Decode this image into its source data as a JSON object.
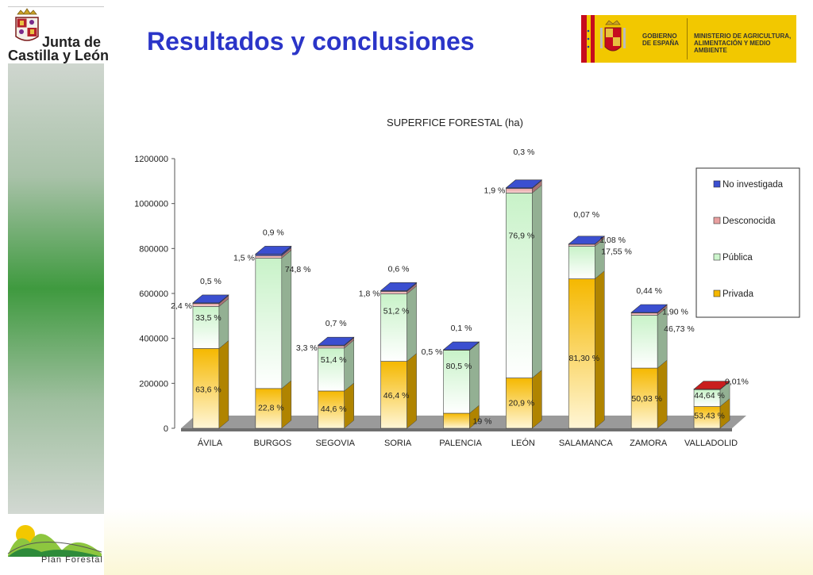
{
  "header": {
    "title": "Resultados y conclusiones",
    "org_name_line1": "Junta de",
    "org_name_line2": "Castilla y León",
    "gov_label": "GOBIERNO DE ESPAÑA",
    "ministry_label": "MINISTERIO DE AGRICULTURA, ALIMENTACIÓN Y MEDIO AMBIENTE"
  },
  "footer": {
    "plan_label": "Plan Forestal"
  },
  "colors": {
    "title": "#2b35c8",
    "privada": "#f5b800",
    "publica": "#ccf5cc",
    "desconocida": "#e9a0a0",
    "no_investigada": "#3b4fd0",
    "valladolid_top": "#c81e1e"
  },
  "chart_data": {
    "type": "bar",
    "stacked": true,
    "three_d": true,
    "title": "SUPERFICE FORESTAL (ha)",
    "xlabel": "",
    "ylabel": "",
    "ylim": [
      0,
      1200000
    ],
    "yticks": [
      "0",
      "200000",
      "400000",
      "600000",
      "800000",
      "1000000",
      "1200000"
    ],
    "categories": [
      "ÁVILA",
      "BURGOS",
      "SEGOVIA",
      "SORIA",
      "PALENCIA",
      "LEÓN",
      "SALAMANCA",
      "ZAMORA",
      "VALLADOLID"
    ],
    "legend_position": "right",
    "series": [
      {
        "name": "Privada",
        "values": [
          355000,
          177000,
          166000,
          298000,
          67000,
          224000,
          665000,
          268000,
          97000
        ],
        "labels": [
          "63,6 %",
          "22,8 %",
          "44,6 %",
          "46,4 %",
          "19 %",
          "20,9 %",
          "81,30 %",
          "50,93 %",
          "53,43 %"
        ]
      },
      {
        "name": "Pública",
        "values": [
          187000,
          580000,
          191000,
          300000,
          280000,
          823000,
          145000,
          235000,
          75000
        ],
        "labels": [
          "33,5 %",
          "74,8 %",
          "51,4 %",
          "51,2 %",
          "80,5 %",
          "76,9 %",
          "17,55 %",
          "46,73 %",
          "44,64 %"
        ]
      },
      {
        "name": "Desconocida",
        "values": [
          13000,
          11000,
          10000,
          11000,
          2000,
          20000,
          9000,
          10000,
          2000
        ],
        "labels": [
          "2,4 %",
          "1,5 %",
          "3,3 %",
          "1,8 %",
          "0,5 %",
          "1,9 %",
          "1,08 %",
          "1,90 %",
          ""
        ]
      },
      {
        "name": "No investigada",
        "values": [
          3000,
          7000,
          3000,
          4000,
          300,
          3000,
          600,
          2300,
          100
        ],
        "labels": [
          "0,5 %",
          "0,9 %",
          "0,7 %",
          "0,6 %",
          "0,1 %",
          "0,3 %",
          "0,07 %",
          "0,44 %",
          "0,01%"
        ]
      }
    ]
  }
}
